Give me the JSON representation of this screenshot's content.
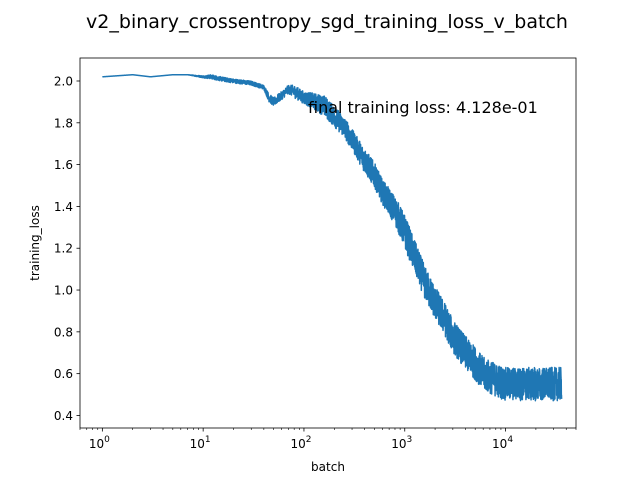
{
  "chart_data": {
    "type": "line",
    "title": "v2_binary_crossentropy_sgd_training_loss_v_batch",
    "xlabel": "batch",
    "ylabel": "training_loss",
    "xscale": "log",
    "xlim": [
      0.6,
      50000
    ],
    "ylim": [
      0.34,
      2.11
    ],
    "grid": false,
    "annotation": "final training loss: 4.128e-01",
    "line_color": "#1f77b4",
    "x_ticks": [
      {
        "value": 1,
        "base": "10",
        "exp": "0"
      },
      {
        "value": 10,
        "base": "10",
        "exp": "1"
      },
      {
        "value": 100,
        "base": "10",
        "exp": "2"
      },
      {
        "value": 1000,
        "base": "10",
        "exp": "3"
      },
      {
        "value": 10000,
        "base": "10",
        "exp": "4"
      }
    ],
    "y_ticks": [
      {
        "value": 0.4,
        "label": "0.4"
      },
      {
        "value": 0.6,
        "label": "0.6"
      },
      {
        "value": 0.8,
        "label": "0.8"
      },
      {
        "value": 1.0,
        "label": "1.0"
      },
      {
        "value": 1.2,
        "label": "1.2"
      },
      {
        "value": 1.4,
        "label": "1.4"
      },
      {
        "value": 1.6,
        "label": "1.6"
      },
      {
        "value": 1.8,
        "label": "1.8"
      },
      {
        "value": 2.0,
        "label": "2.0"
      }
    ],
    "series": [
      {
        "x": [
          1,
          2,
          3,
          5,
          7,
          10,
          12,
          15,
          20,
          30,
          40,
          45,
          50,
          60,
          70,
          80,
          100,
          130,
          160,
          200,
          250,
          300,
          400,
          500,
          600,
          800,
          1000,
          1300,
          1600,
          2000,
          2500,
          3000,
          4000,
          5000,
          6000,
          8000,
          10000,
          15000,
          20000,
          30000,
          36000
        ],
        "y": [
          2.02,
          2.03,
          2.02,
          2.03,
          2.03,
          2.02,
          2.02,
          2.01,
          2.0,
          1.99,
          1.97,
          1.92,
          1.9,
          1.93,
          1.96,
          1.95,
          1.92,
          1.9,
          1.88,
          1.83,
          1.78,
          1.72,
          1.62,
          1.55,
          1.47,
          1.38,
          1.28,
          1.14,
          1.03,
          0.94,
          0.86,
          0.78,
          0.7,
          0.65,
          0.6,
          0.57,
          0.55,
          0.55,
          0.55,
          0.55,
          0.55
        ],
        "noise": [
          0,
          0,
          0,
          0,
          0,
          0.005,
          0.01,
          0.01,
          0.01,
          0.01,
          0.01,
          0.02,
          0.02,
          0.02,
          0.02,
          0.03,
          0.03,
          0.04,
          0.05,
          0.05,
          0.05,
          0.05,
          0.06,
          0.06,
          0.06,
          0.07,
          0.08,
          0.08,
          0.08,
          0.08,
          0.08,
          0.08,
          0.08,
          0.08,
          0.08,
          0.08,
          0.08,
          0.08,
          0.08,
          0.08,
          0.08
        ]
      }
    ]
  }
}
